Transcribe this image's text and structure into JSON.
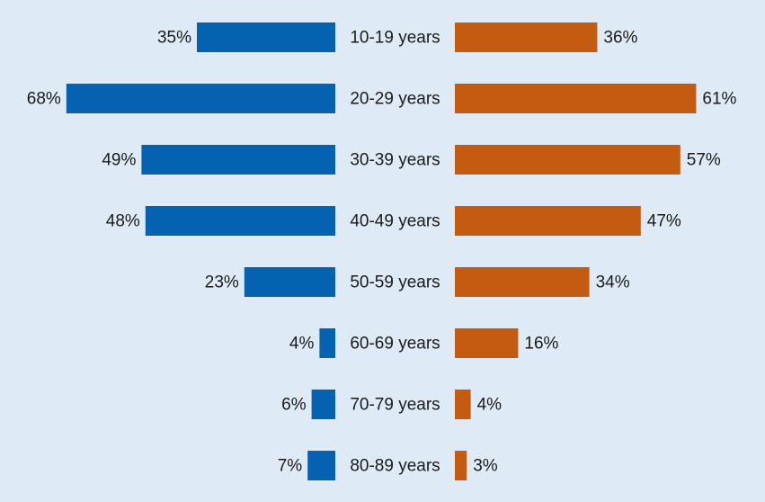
{
  "chart_data": {
    "type": "bar",
    "orientation": "horizontal",
    "layout": "butterfly",
    "value_format": "percent",
    "categories": [
      "10-19 years",
      "20-29 years",
      "30-39 years",
      "40-49 years",
      "50-59 years",
      "60-69 years",
      "70-79 years",
      "80-89 years"
    ],
    "series": [
      {
        "side": "left",
        "color": "#0462b0",
        "values": [
          35,
          68,
          49,
          48,
          23,
          4,
          6,
          7
        ],
        "labels": [
          "35%",
          "68%",
          "49%",
          "48%",
          "23%",
          "4%",
          "6%",
          "7%"
        ]
      },
      {
        "side": "right",
        "color": "#c55a11",
        "values": [
          36,
          61,
          57,
          47,
          34,
          16,
          4,
          3
        ],
        "labels": [
          "36%",
          "61%",
          "57%",
          "47%",
          "34%",
          "16%",
          "4%",
          "3%"
        ]
      }
    ],
    "title": "",
    "xlabel": "",
    "ylabel": "",
    "grid": false,
    "legend": "none",
    "background": "#deebf7"
  }
}
